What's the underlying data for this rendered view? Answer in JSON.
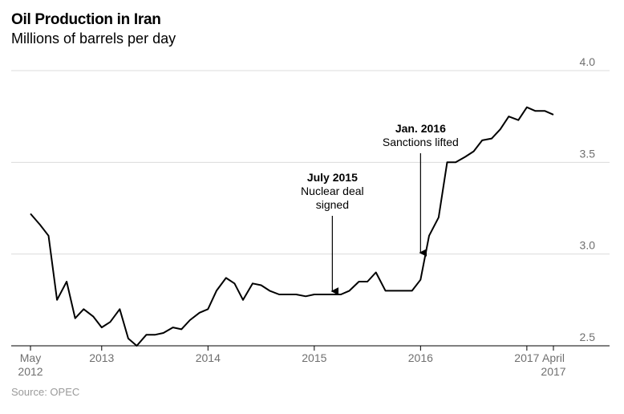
{
  "chart_data": {
    "type": "line",
    "title": "Oil Production in Iran",
    "subtitle": "Millions of barrels per day",
    "source": "Source: OPEC",
    "ylim": [
      2.5,
      4.0
    ],
    "yticks": [
      "2.5",
      "3.0",
      "3.5",
      "4.0"
    ],
    "grid": true,
    "x_ticks": [
      {
        "label": [
          "May",
          "2012"
        ],
        "t": 2012.33
      },
      {
        "label": [
          "2013"
        ],
        "t": 2013.0
      },
      {
        "label": [
          "2014"
        ],
        "t": 2014.0
      },
      {
        "label": [
          "2015"
        ],
        "t": 2015.0
      },
      {
        "label": [
          "2016"
        ],
        "t": 2016.0
      },
      {
        "label": [
          "2017"
        ],
        "t": 2017.0
      },
      {
        "label": [
          "April",
          "2017"
        ],
        "t": 2017.25
      }
    ],
    "series": [
      {
        "x": [
          2012.33,
          2012.42,
          2012.5,
          2012.58,
          2012.67,
          2012.75,
          2012.83,
          2012.92,
          2013.0,
          2013.08,
          2013.17,
          2013.25,
          2013.33,
          2013.42,
          2013.5,
          2013.58,
          2013.67,
          2013.75,
          2013.83,
          2013.92,
          2014.0,
          2014.08,
          2014.17,
          2014.25,
          2014.33,
          2014.42,
          2014.5,
          2014.58,
          2014.67,
          2014.75,
          2014.83,
          2014.92,
          2015.0,
          2015.08,
          2015.17,
          2015.25,
          2015.33,
          2015.42,
          2015.5,
          2015.58,
          2015.67,
          2015.75,
          2015.83,
          2015.92,
          2016.0,
          2016.08,
          2016.17,
          2016.25,
          2016.33,
          2016.42,
          2016.5,
          2016.58,
          2016.67,
          2016.75,
          2016.83,
          2016.92,
          2017.0,
          2017.08,
          2017.17,
          2017.25
        ],
        "values": [
          3.22,
          3.16,
          3.1,
          2.75,
          2.85,
          2.65,
          2.7,
          2.66,
          2.6,
          2.63,
          2.7,
          2.54,
          2.5,
          2.56,
          2.56,
          2.57,
          2.6,
          2.59,
          2.64,
          2.68,
          2.7,
          2.8,
          2.87,
          2.84,
          2.75,
          2.84,
          2.83,
          2.8,
          2.78,
          2.78,
          2.78,
          2.77,
          2.78,
          2.78,
          2.78,
          2.78,
          2.8,
          2.85,
          2.85,
          2.9,
          2.8,
          2.8,
          2.8,
          2.8,
          2.86,
          3.1,
          3.2,
          3.5,
          3.5,
          3.53,
          3.56,
          3.62,
          3.63,
          3.68,
          3.75,
          3.73,
          3.8,
          3.78,
          3.78,
          3.76
        ]
      }
    ],
    "annotations": [
      {
        "bold": "July 2015",
        "lines": [
          "Nuclear deal",
          "signed"
        ],
        "t": 2015.17,
        "value": 2.78
      },
      {
        "bold": "Jan. 2016",
        "lines": [
          "Sanctions lifted"
        ],
        "t": 2016.0,
        "value": 2.99
      }
    ]
  }
}
